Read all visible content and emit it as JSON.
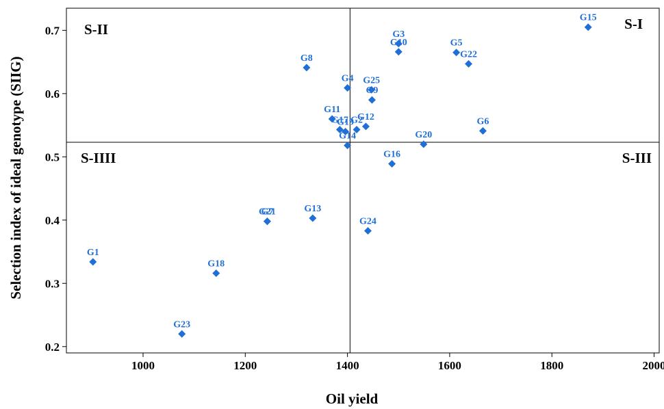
{
  "colors": {
    "point": "#1f6fd6",
    "frame": "#000000",
    "divider": "#000000"
  },
  "chart_data": {
    "type": "scatter",
    "xlabel": "Oil yield",
    "ylabel": "Selection index of ideal genotype (SIIG)",
    "xlim": [
      850,
      2010
    ],
    "ylim": [
      0.19,
      0.735
    ],
    "xticks": [
      1000,
      1200,
      1400,
      1600,
      1800,
      2000
    ],
    "yticks": [
      0.2,
      0.3,
      0.4,
      0.5,
      0.6,
      0.7
    ],
    "ytick_labels": [
      "0.2",
      "0.3",
      "0.4",
      "0.5",
      "0.6",
      "0.7"
    ],
    "grid": false,
    "marker": "diamond",
    "divider_x": 1405,
    "divider_y": 0.523,
    "quadrants": {
      "top_right": "S-I",
      "top_left": "S-II",
      "bottom_right": "S-III",
      "bottom_left": "S-IIII"
    },
    "points": [
      {
        "label": "G1",
        "x": 902,
        "y": 0.334
      },
      {
        "label": "G23",
        "x": 1076,
        "y": 0.22
      },
      {
        "label": "G18",
        "x": 1143,
        "y": 0.316
      },
      {
        "label": "G7",
        "x": 1243,
        "y": 0.398
      },
      {
        "label": "G21",
        "x": 1243,
        "y": 0.398
      },
      {
        "label": "G13",
        "x": 1332,
        "y": 0.403
      },
      {
        "label": "G8",
        "x": 1320,
        "y": 0.641
      },
      {
        "label": "G4",
        "x": 1400,
        "y": 0.609
      },
      {
        "label": "G11",
        "x": 1370,
        "y": 0.56
      },
      {
        "label": "G17",
        "x": 1385,
        "y": 0.543
      },
      {
        "label": "G19",
        "x": 1396,
        "y": 0.54
      },
      {
        "label": "G14",
        "x": 1400,
        "y": 0.518
      },
      {
        "label": "G2",
        "x": 1418,
        "y": 0.543
      },
      {
        "label": "G12",
        "x": 1436,
        "y": 0.548
      },
      {
        "label": "G9",
        "x": 1448,
        "y": 0.59
      },
      {
        "label": "G25",
        "x": 1447,
        "y": 0.606
      },
      {
        "label": "G24",
        "x": 1440,
        "y": 0.383
      },
      {
        "label": "G16",
        "x": 1487,
        "y": 0.489
      },
      {
        "label": "G3",
        "x": 1500,
        "y": 0.679
      },
      {
        "label": "G10",
        "x": 1500,
        "y": 0.666
      },
      {
        "label": "G20",
        "x": 1549,
        "y": 0.52
      },
      {
        "label": "G5",
        "x": 1613,
        "y": 0.665
      },
      {
        "label": "G22",
        "x": 1637,
        "y": 0.647
      },
      {
        "label": "G6",
        "x": 1665,
        "y": 0.541
      },
      {
        "label": "G15",
        "x": 1871,
        "y": 0.705
      }
    ]
  }
}
